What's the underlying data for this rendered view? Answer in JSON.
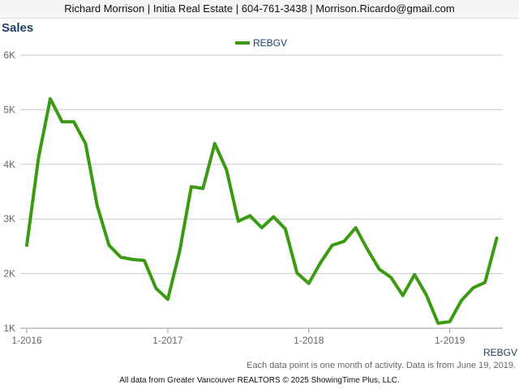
{
  "header": {
    "contact": "Richard Morrison | Initia Real Estate | 604-761-3438 | Morrison.Ricardo@gmail.com"
  },
  "notes": {
    "data_note": "Each data point is one month of activity. Data is from June 19, 2019.",
    "footer": "All data from Greater Vancouver REALTORS © 2025 ShowingTime Plus, LLC."
  },
  "colors": {
    "series": "#3a9a12",
    "title": "#1f3f66",
    "grid": "#c8c8c8",
    "axis_label": "#666666"
  },
  "chart_data": {
    "type": "line",
    "title": "Sales",
    "legend_position": "top-center",
    "grid": true,
    "x_tick_labels": [
      "1-2016",
      "1-2017",
      "1-2018",
      "1-2019"
    ],
    "y_tick_labels": [
      "1K",
      "2K",
      "3K",
      "4K",
      "5K",
      "6K"
    ],
    "ylim": [
      1000,
      6000
    ],
    "x_label_series_tag": "REBGV",
    "series": [
      {
        "name": "REBGV",
        "x": [
          "2016-01",
          "2016-02",
          "2016-03",
          "2016-04",
          "2016-05",
          "2016-06",
          "2016-07",
          "2016-08",
          "2016-09",
          "2016-10",
          "2016-11",
          "2016-12",
          "2017-01",
          "2017-02",
          "2017-03",
          "2017-04",
          "2017-05",
          "2017-06",
          "2017-07",
          "2017-08",
          "2017-09",
          "2017-10",
          "2017-11",
          "2017-12",
          "2018-01",
          "2018-02",
          "2018-03",
          "2018-04",
          "2018-05",
          "2018-06",
          "2018-07",
          "2018-08",
          "2018-09",
          "2018-10",
          "2018-11",
          "2018-12",
          "2019-01",
          "2019-02",
          "2019-03",
          "2019-04",
          "2019-05"
        ],
        "values": [
          2520,
          4120,
          5200,
          4780,
          4780,
          4380,
          3240,
          2520,
          2300,
          2260,
          2240,
          1730,
          1530,
          2400,
          3590,
          3560,
          4380,
          3900,
          2960,
          3060,
          2840,
          3040,
          2820,
          2010,
          1820,
          2200,
          2520,
          2590,
          2840,
          2440,
          2080,
          1930,
          1600,
          1980,
          1610,
          1090,
          1120,
          1510,
          1740,
          1840,
          2650
        ]
      }
    ]
  }
}
